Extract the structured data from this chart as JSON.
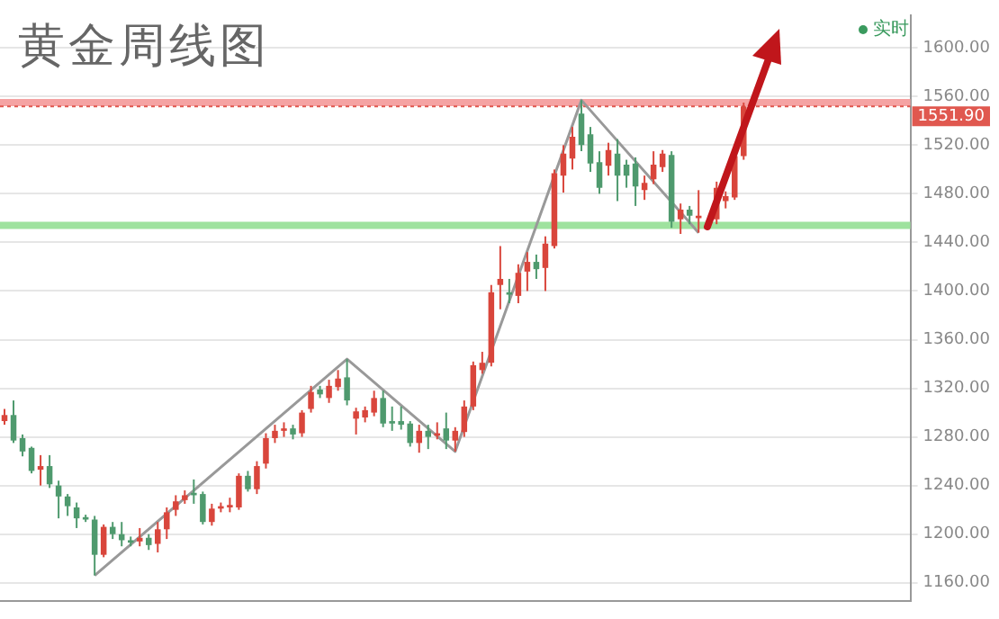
{
  "chart_data": {
    "type": "candlestick",
    "title": "黄金周线图",
    "annotations": [
      "实时"
    ],
    "categories": [
      null,
      null,
      null,
      null,
      null,
      null,
      null,
      null,
      null,
      null,
      null,
      null,
      null,
      null,
      null,
      null,
      null,
      null,
      null,
      null,
      null,
      null,
      null,
      null,
      null,
      null,
      null,
      null,
      null,
      null,
      null,
      null,
      null,
      null,
      null,
      null,
      null,
      null,
      null,
      null,
      null,
      null,
      null,
      null,
      null,
      null,
      null,
      null,
      null,
      null,
      null,
      null,
      null,
      null,
      null,
      null,
      null,
      null,
      null,
      null,
      null,
      null,
      null,
      null,
      null,
      null,
      null,
      null,
      null,
      null,
      null,
      null,
      null,
      null,
      null,
      null,
      null,
      null,
      null,
      null,
      null,
      null,
      null,
      null,
      null,
      null,
      null,
      null,
      null,
      null,
      null,
      null,
      null,
      null,
      null,
      null,
      null,
      null,
      null,
      null,
      null
    ],
    "ohlc": [
      [
        1293,
        1303,
        1290,
        1298
      ],
      [
        1298,
        1310,
        1275,
        1277
      ],
      [
        1279,
        1282,
        1264,
        1268
      ],
      [
        1271,
        1272,
        1250,
        1252
      ],
      [
        1253,
        1265,
        1240,
        1256
      ],
      [
        1256,
        1265,
        1238,
        1241
      ],
      [
        1240,
        1244,
        1213,
        1231
      ],
      [
        1231,
        1233,
        1215,
        1223
      ],
      [
        1222,
        1226,
        1205,
        1213
      ],
      [
        1214,
        1216,
        1210,
        1212
      ],
      [
        1212,
        1215,
        1166,
        1183
      ],
      [
        1183,
        1208,
        1181,
        1206
      ],
      [
        1206,
        1210,
        1196,
        1200
      ],
      [
        1200,
        1210,
        1190,
        1195
      ],
      [
        1195,
        1198,
        1190,
        1193
      ],
      [
        1194,
        1205,
        1190,
        1197
      ],
      [
        1197,
        1200,
        1187,
        1191
      ],
      [
        1192,
        1210,
        1185,
        1204
      ],
      [
        1204,
        1222,
        1196,
        1218
      ],
      [
        1220,
        1232,
        1215,
        1227
      ],
      [
        1228,
        1236,
        1225,
        1232
      ],
      [
        1234,
        1245,
        1225,
        1232
      ],
      [
        1233,
        1235,
        1208,
        1210
      ],
      [
        1210,
        1225,
        1207,
        1221
      ],
      [
        1221,
        1226,
        1218,
        1223
      ],
      [
        1222,
        1230,
        1218,
        1224
      ],
      [
        1222,
        1250,
        1220,
        1248
      ],
      [
        1248,
        1252,
        1235,
        1237
      ],
      [
        1237,
        1260,
        1233,
        1256
      ],
      [
        1258,
        1283,
        1254,
        1279
      ],
      [
        1279,
        1290,
        1275,
        1285
      ],
      [
        1285,
        1292,
        1280,
        1287
      ],
      [
        1287,
        1290,
        1278,
        1282
      ],
      [
        1283,
        1302,
        1280,
        1300
      ],
      [
        1303,
        1322,
        1300,
        1317
      ],
      [
        1319,
        1322,
        1312,
        1315
      ],
      [
        1312,
        1327,
        1308,
        1322
      ],
      [
        1321,
        1335,
        1318,
        1328
      ],
      [
        1329,
        1344,
        1306,
        1310
      ],
      [
        1295,
        1304,
        1282,
        1301
      ],
      [
        1296,
        1305,
        1292,
        1302
      ],
      [
        1300,
        1318,
        1297,
        1312
      ],
      [
        1312,
        1318,
        1288,
        1291
      ],
      [
        1293,
        1305,
        1285,
        1291
      ],
      [
        1293,
        1305,
        1286,
        1290
      ],
      [
        1291,
        1293,
        1272,
        1275
      ],
      [
        1275,
        1290,
        1267,
        1285
      ],
      [
        1285,
        1290,
        1270,
        1280
      ],
      [
        1281,
        1292,
        1278,
        1283
      ],
      [
        1287,
        1300,
        1270,
        1277
      ],
      [
        1277,
        1288,
        1268,
        1285
      ],
      [
        1284,
        1310,
        1280,
        1305
      ],
      [
        1305,
        1342,
        1302,
        1339
      ],
      [
        1335,
        1350,
        1332,
        1341
      ],
      [
        1341,
        1405,
        1338,
        1399
      ],
      [
        1405,
        1437,
        1385,
        1410
      ],
      [
        1399,
        1410,
        1390,
        1397
      ],
      [
        1396,
        1422,
        1390,
        1415
      ],
      [
        1416,
        1432,
        1400,
        1424
      ],
      [
        1424,
        1430,
        1410,
        1418
      ],
      [
        1419,
        1445,
        1400,
        1439
      ],
      [
        1437,
        1500,
        1435,
        1497
      ],
      [
        1495,
        1520,
        1481,
        1513
      ],
      [
        1509,
        1535,
        1500,
        1527
      ],
      [
        1546,
        1557,
        1515,
        1520
      ],
      [
        1529,
        1535,
        1498,
        1505
      ],
      [
        1506,
        1515,
        1480,
        1485
      ],
      [
        1503,
        1522,
        1495,
        1516
      ],
      [
        1513,
        1525,
        1474,
        1495
      ],
      [
        1504,
        1508,
        1485,
        1495
      ],
      [
        1505,
        1510,
        1470,
        1486
      ],
      [
        1483,
        1495,
        1475,
        1489
      ],
      [
        1492,
        1515,
        1488,
        1504
      ],
      [
        1502,
        1516,
        1498,
        1513
      ],
      [
        1512,
        1515,
        1452,
        1457
      ],
      [
        1459,
        1472,
        1447,
        1467
      ],
      [
        1467,
        1470,
        1455,
        1462
      ],
      [
        1460,
        1483,
        1448,
        1462
      ],
      null,
      [
        1459,
        1490,
        1455,
        1485
      ],
      [
        1474,
        1482,
        1468,
        1478
      ],
      [
        1477,
        1515,
        1475,
        1511
      ],
      [
        1511,
        1555,
        1508,
        1551.9
      ],
      null,
      null,
      null,
      null,
      null,
      null,
      null,
      null,
      null,
      null,
      null,
      null,
      null,
      null,
      null,
      null,
      null,
      null
    ],
    "colors": [
      "#d9463c",
      "#4f9a6e",
      "#4f9a6e",
      "#4f9a6e",
      "#d9463c",
      "#4f9a6e",
      "#4f9a6e",
      "#4f9a6e",
      "#4f9a6e",
      "#4f9a6e",
      "#4f9a6e",
      "#d9463c",
      "#4f9a6e",
      "#4f9a6e",
      "#4f9a6e",
      "#d9463c",
      "#4f9a6e",
      "#d9463c",
      "#d9463c",
      "#d9463c",
      "#d9463c",
      "#4f9a6e",
      "#4f9a6e",
      "#d9463c",
      "#d9463c",
      "#d9463c",
      "#d9463c",
      "#4f9a6e",
      "#d9463c",
      "#d9463c",
      "#d9463c",
      "#d9463c",
      "#4f9a6e",
      "#d9463c",
      "#d9463c",
      "#4f9a6e",
      "#d9463c",
      "#d9463c",
      "#4f9a6e",
      "#d9463c",
      "#d9463c",
      "#d9463c",
      "#4f9a6e",
      "#4f9a6e",
      "#4f9a6e",
      "#4f9a6e",
      "#d9463c",
      "#4f9a6e",
      "#d9463c",
      "#4f9a6e",
      "#d9463c",
      "#d9463c",
      "#d9463c",
      "#d9463c",
      "#d9463c",
      "#d9463c",
      "#4f9a6e",
      "#d9463c",
      "#d9463c",
      "#4f9a6e",
      "#d9463c",
      "#d9463c",
      "#d9463c",
      "#d9463c",
      "#4f9a6e",
      "#4f9a6e",
      "#4f9a6e",
      "#d9463c",
      "#4f9a6e",
      "#4f9a6e",
      "#4f9a6e",
      "#d9463c",
      "#d9463c",
      "#d9463c",
      "#4f9a6e",
      "#d9463c",
      "#4f9a6e",
      "#d9463c",
      null,
      "#d9463c",
      "#d9463c",
      "#d9463c",
      "#d9463c",
      null,
      null,
      null,
      null,
      null,
      null,
      null,
      null,
      null,
      null,
      null,
      null,
      null,
      null,
      null,
      null,
      null,
      null
    ],
    "series": [
      {
        "type": "line",
        "color": "#999999",
        "values": [
          null,
          null,
          null,
          null,
          null,
          null,
          null,
          null,
          null,
          null,
          1166,
          null,
          null,
          null,
          null,
          null,
          null,
          null,
          null,
          null,
          null,
          null,
          null,
          null,
          null,
          null,
          null,
          null,
          null,
          null,
          null,
          null,
          null,
          null,
          null,
          null,
          null,
          null,
          1344,
          null,
          null,
          null,
          null,
          null,
          null,
          null,
          null,
          null,
          null,
          null,
          1268,
          null,
          null,
          null,
          null,
          null,
          null,
          null,
          null,
          null,
          null,
          null,
          null,
          null,
          1557,
          null,
          null,
          null,
          null,
          null,
          null,
          null,
          null,
          null,
          null,
          null,
          null,
          1448,
          null,
          null,
          null,
          null,
          null,
          null,
          null,
          null,
          null,
          null,
          null,
          null,
          null,
          null,
          null,
          null,
          null,
          null,
          null,
          null,
          null,
          null,
          null
        ]
      }
    ],
    "ref_lines": [
      {
        "axis": "y",
        "value": 1555,
        "color": "#f5a3a3",
        "line_style": "solid"
      },
      {
        "axis": "y",
        "value": 1551.9,
        "label": "1551.90",
        "color": "#e0584f",
        "line_style": "dotted"
      },
      {
        "axis": "y",
        "value": 1454,
        "color": "#9ee29e",
        "line_style": "solid"
      }
    ],
    "ylim": [
      1145,
      1627
    ],
    "yticks": [
      {
        "value": 1160,
        "label": "1160.00"
      },
      {
        "value": 1200,
        "label": "1200.00"
      },
      {
        "value": 1240,
        "label": "1240.00"
      },
      {
        "value": 1280,
        "label": "1280.00"
      },
      {
        "value": 1320,
        "label": "1320.00"
      },
      {
        "value": 1360,
        "label": "1360.00"
      },
      {
        "value": 1400,
        "label": "1400.00"
      },
      {
        "value": 1440,
        "label": "1440.00"
      },
      {
        "value": 1480,
        "label": "1480.00"
      },
      {
        "value": 1520,
        "label": "1520.00"
      },
      {
        "value": 1560,
        "label": "1560.00"
      },
      {
        "value": 1600,
        "label": "1600.00"
      }
    ],
    "grid": "y",
    "tick_labels": "y"
  }
}
